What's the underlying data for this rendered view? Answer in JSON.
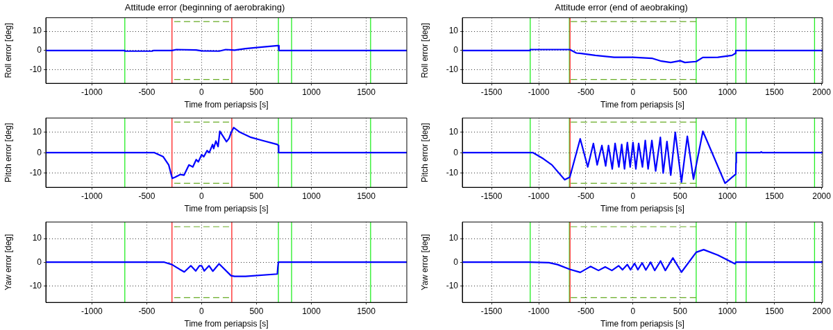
{
  "chart_data": [
    {
      "type": "line",
      "title": "Attitude error (beginning of aerobraking)",
      "xlabel": "Time from periapsis [s]",
      "ylabel": "Roll error [deg]",
      "xlim": [
        -1420,
        1870
      ],
      "xticks": [
        -1000,
        -500,
        0,
        500,
        1000,
        1500
      ],
      "ylim": [
        -17,
        17
      ],
      "yticks": [
        -10,
        0,
        10
      ],
      "grid": true,
      "ref_lines": [
        {
          "axis": "x",
          "value": -700,
          "color": "#22ee22"
        },
        {
          "axis": "x",
          "value": -270,
          "color": "#ff2020"
        },
        {
          "axis": "x",
          "value": 275,
          "color": "#ff2020"
        },
        {
          "axis": "x",
          "value": 700,
          "color": "#22ee22"
        },
        {
          "axis": "x",
          "value": 820,
          "color": "#22ee22"
        },
        {
          "axis": "x",
          "value": 1540,
          "color": "#22ee22"
        }
      ],
      "series": [
        {
          "color": "#0000ff",
          "x": [
            -1420,
            -700,
            -700,
            -450,
            -440,
            -270,
            -230,
            -50,
            0,
            160,
            220,
            280,
            300,
            400,
            550,
            690,
            700,
            705,
            1870
          ],
          "values": [
            0,
            0,
            -0.3,
            -0.3,
            0,
            0,
            0.5,
            0.3,
            -0.2,
            -0.3,
            0.5,
            0.3,
            0.2,
            1,
            1.8,
            2.5,
            2.5,
            0,
            0
          ]
        },
        {
          "type": "line",
          "color": "#66aa22",
          "line_style": "dashed",
          "x": [
            -250,
            250
          ],
          "values": [
            15,
            15
          ]
        },
        {
          "type": "line",
          "color": "#66aa22",
          "line_style": "dashed",
          "x": [
            -250,
            250
          ],
          "values": [
            -15,
            -15
          ]
        }
      ]
    },
    {
      "type": "line",
      "title": "Attitude error (end of aeobraking)",
      "xlabel": "Time from periapsis [s]",
      "ylabel": "Roll error [deg]",
      "xlim": [
        -1810,
        2010
      ],
      "xticks": [
        -1500,
        -1000,
        -500,
        0,
        500,
        1000,
        1500,
        2000
      ],
      "ylim": [
        -17,
        17
      ],
      "yticks": [
        -10,
        0,
        10
      ],
      "grid": true,
      "ref_lines": [
        {
          "axis": "x",
          "value": -1090,
          "color": "#22ee22"
        },
        {
          "axis": "x",
          "value": -675,
          "color": "#22ee22"
        },
        {
          "axis": "x",
          "value": -668,
          "color": "#ff2020"
        },
        {
          "axis": "x",
          "value": 670,
          "color": "#22ee22"
        },
        {
          "axis": "x",
          "value": 1090,
          "color": "#22ee22"
        },
        {
          "axis": "x",
          "value": 1200,
          "color": "#22ee22"
        },
        {
          "axis": "x",
          "value": 1925,
          "color": "#22ee22"
        }
      ],
      "series": [
        {
          "color": "#0000ff",
          "x": [
            -1810,
            -1090,
            -1090,
            -670,
            -600,
            -550,
            -400,
            -200,
            0,
            200,
            300,
            400,
            500,
            550,
            670,
            740,
            900,
            1050,
            1085,
            1090,
            2010
          ],
          "values": [
            0,
            0,
            0.5,
            0.5,
            -1.3,
            -1.5,
            -2.5,
            -3.5,
            -3.5,
            -4,
            -5.5,
            -6.2,
            -5.3,
            -6.2,
            -5.7,
            -3.6,
            -3.5,
            -2.5,
            -1.5,
            0,
            0
          ]
        },
        {
          "type": "line",
          "color": "#66aa22",
          "line_style": "dashed",
          "x": [
            -660,
            670
          ],
          "values": [
            15,
            15
          ]
        },
        {
          "type": "line",
          "color": "#66aa22",
          "line_style": "dashed",
          "x": [
            -660,
            670
          ],
          "values": [
            -15,
            -15
          ]
        }
      ]
    },
    {
      "type": "line",
      "xlabel": "Time from periapsis [s]",
      "ylabel": "Pitch error [deg]",
      "xlim": [
        -1420,
        1870
      ],
      "xticks": [
        -1000,
        -500,
        0,
        500,
        1000,
        1500
      ],
      "ylim": [
        -17,
        17
      ],
      "yticks": [
        -10,
        0,
        10
      ],
      "grid": true,
      "ref_lines": [
        {
          "axis": "x",
          "value": -700,
          "color": "#22ee22"
        },
        {
          "axis": "x",
          "value": -270,
          "color": "#ff2020"
        },
        {
          "axis": "x",
          "value": 275,
          "color": "#ff2020"
        },
        {
          "axis": "x",
          "value": 700,
          "color": "#22ee22"
        },
        {
          "axis": "x",
          "value": 820,
          "color": "#22ee22"
        },
        {
          "axis": "x",
          "value": 1540,
          "color": "#22ee22"
        }
      ],
      "series": [
        {
          "color": "#0000ff",
          "x": [
            -1420,
            -430,
            -350,
            -300,
            -268,
            -240,
            -195,
            -160,
            -115,
            -80,
            -49,
            -30,
            0,
            20,
            50,
            70,
            100,
            110,
            130,
            150,
            166,
            227,
            250,
            270,
            293,
            350,
            450,
            550,
            690,
            700,
            702,
            1870
          ],
          "values": [
            0,
            0,
            -2,
            -6,
            -12.6,
            -12,
            -10.7,
            -11,
            -6,
            -7,
            -3.4,
            -4.5,
            -1,
            -2,
            1,
            0,
            4,
            2,
            5.7,
            3,
            10.5,
            5.4,
            7,
            10,
            12.3,
            10,
            7.5,
            6,
            4,
            3.5,
            0,
            0
          ]
        },
        {
          "type": "line",
          "color": "#66aa22",
          "line_style": "dashed",
          "x": [
            -250,
            250
          ],
          "values": [
            15,
            15
          ]
        },
        {
          "type": "line",
          "color": "#66aa22",
          "line_style": "dashed",
          "x": [
            -250,
            250
          ],
          "values": [
            -15,
            -15
          ]
        }
      ]
    },
    {
      "type": "line",
      "xlabel": "Time from periapsis [s]",
      "ylabel": "Pitch error [deg]",
      "xlim": [
        -1810,
        2010
      ],
      "xticks": [
        -1500,
        -1000,
        -500,
        0,
        500,
        1000,
        1500,
        2000
      ],
      "ylim": [
        -17,
        17
      ],
      "yticks": [
        -10,
        0,
        10
      ],
      "grid": true,
      "ref_lines": [
        {
          "axis": "x",
          "value": -1090,
          "color": "#22ee22"
        },
        {
          "axis": "x",
          "value": -675,
          "color": "#22ee22"
        },
        {
          "axis": "x",
          "value": -668,
          "color": "#ff2020"
        },
        {
          "axis": "x",
          "value": 670,
          "color": "#22ee22"
        },
        {
          "axis": "x",
          "value": 1090,
          "color": "#22ee22"
        },
        {
          "axis": "x",
          "value": 1200,
          "color": "#22ee22"
        },
        {
          "axis": "x",
          "value": 1925,
          "color": "#22ee22"
        }
      ],
      "series": [
        {
          "color": "#0000ff",
          "x": [
            -1810,
            -1060,
            -950,
            -860,
            -724,
            -670,
            -560,
            -480,
            -420,
            -380,
            -330,
            -290,
            -260,
            -220,
            -190,
            -150,
            -120,
            -90,
            -60,
            -30,
            0,
            30,
            60,
            100,
            130,
            160,
            200,
            240,
            290,
            320,
            360,
            400,
            448,
            514,
            576,
            641,
            741,
            976,
            1090,
            1092,
            1095,
            1350,
            1360,
            1370,
            2010
          ],
          "values": [
            0,
            0,
            -3,
            -6,
            -13.3,
            -12,
            6.8,
            -7,
            4.5,
            -6,
            3.5,
            -6.5,
            3.5,
            -8,
            4.5,
            -7,
            4,
            -8,
            5,
            -7,
            5,
            -8,
            4.5,
            -7,
            6,
            -8,
            6,
            -9,
            7.5,
            -10,
            5.5,
            -11,
            10,
            -14.4,
            8,
            -13,
            10.5,
            -15,
            -10.5,
            -5,
            0,
            0,
            0.4,
            0,
            0
          ]
        },
        {
          "type": "line",
          "color": "#66aa22",
          "line_style": "dashed",
          "x": [
            -660,
            670
          ],
          "values": [
            15,
            15
          ]
        },
        {
          "type": "line",
          "color": "#66aa22",
          "line_style": "dashed",
          "x": [
            -660,
            670
          ],
          "values": [
            -15,
            -15
          ]
        }
      ]
    },
    {
      "type": "line",
      "xlabel": "Time from periapsis [s]",
      "ylabel": "Yaw error [deg]",
      "xlim": [
        -1420,
        1870
      ],
      "xticks": [
        -1000,
        -500,
        0,
        500,
        1000,
        1500
      ],
      "ylim": [
        -17,
        17
      ],
      "yticks": [
        -10,
        0,
        10
      ],
      "grid": true,
      "ref_lines": [
        {
          "axis": "x",
          "value": -700,
          "color": "#22ee22"
        },
        {
          "axis": "x",
          "value": -270,
          "color": "#ff2020"
        },
        {
          "axis": "x",
          "value": 275,
          "color": "#ff2020"
        },
        {
          "axis": "x",
          "value": 700,
          "color": "#22ee22"
        },
        {
          "axis": "x",
          "value": 820,
          "color": "#22ee22"
        },
        {
          "axis": "x",
          "value": 1540,
          "color": "#22ee22"
        }
      ],
      "series": [
        {
          "color": "#0000ff",
          "x": [
            -1420,
            -340,
            -270,
            -200,
            -158,
            -98,
            -54,
            -20,
            0,
            24,
            68,
            102,
            159,
            268,
            300,
            400,
            690,
            695,
            700,
            1870
          ],
          "values": [
            0,
            0,
            -1,
            -3,
            -4.1,
            -1.5,
            -3.7,
            -1.5,
            -1.5,
            -3.7,
            -1.5,
            -3.8,
            -0.7,
            -5.7,
            -6,
            -6,
            -5,
            -2,
            0,
            0
          ]
        },
        {
          "type": "line",
          "color": "#66aa22",
          "line_style": "dashed",
          "x": [
            -250,
            250
          ],
          "values": [
            15,
            15
          ]
        },
        {
          "type": "line",
          "color": "#66aa22",
          "line_style": "dashed",
          "x": [
            -250,
            250
          ],
          "values": [
            -15,
            -15
          ]
        }
      ]
    },
    {
      "type": "line",
      "xlabel": "Time from periapsis [s]",
      "ylabel": "Yaw error [deg]",
      "xlim": [
        -1810,
        2010
      ],
      "xticks": [
        -1500,
        -1000,
        -500,
        0,
        500,
        1000,
        1500,
        2000
      ],
      "ylim": [
        -17,
        17
      ],
      "yticks": [
        -10,
        0,
        10
      ],
      "grid": true,
      "ref_lines": [
        {
          "axis": "x",
          "value": -1090,
          "color": "#22ee22"
        },
        {
          "axis": "x",
          "value": -675,
          "color": "#22ee22"
        },
        {
          "axis": "x",
          "value": -668,
          "color": "#ff2020"
        },
        {
          "axis": "x",
          "value": 670,
          "color": "#22ee22"
        },
        {
          "axis": "x",
          "value": 1090,
          "color": "#22ee22"
        },
        {
          "axis": "x",
          "value": 1200,
          "color": "#22ee22"
        },
        {
          "axis": "x",
          "value": 1925,
          "color": "#22ee22"
        }
      ],
      "series": [
        {
          "color": "#0000ff",
          "x": [
            -1810,
            -1090,
            -891,
            -800,
            -670,
            -559,
            -451,
            -366,
            -295,
            -224,
            -153,
            -111,
            -60,
            -26,
            17,
            51,
            97,
            136,
            187,
            230,
            292,
            343,
            423,
            514,
            670,
            749,
            900,
            1081,
            1090,
            2010
          ],
          "values": [
            0,
            0,
            -0.2,
            -1,
            -3,
            -4.3,
            -1.8,
            -3.5,
            -2,
            -3.5,
            -1.5,
            -3.2,
            -1,
            -3.2,
            -0.5,
            -3.2,
            -0.3,
            -3.3,
            0,
            -3.5,
            0.5,
            -3.5,
            1.8,
            -4.2,
            4.2,
            5.3,
            3,
            -0.7,
            0,
            0
          ]
        },
        {
          "type": "line",
          "color": "#66aa22",
          "line_style": "dashed",
          "x": [
            -660,
            670
          ],
          "values": [
            15,
            15
          ]
        },
        {
          "type": "line",
          "color": "#66aa22",
          "line_style": "dashed",
          "x": [
            -660,
            670
          ],
          "values": [
            -15,
            -15
          ]
        }
      ]
    }
  ]
}
